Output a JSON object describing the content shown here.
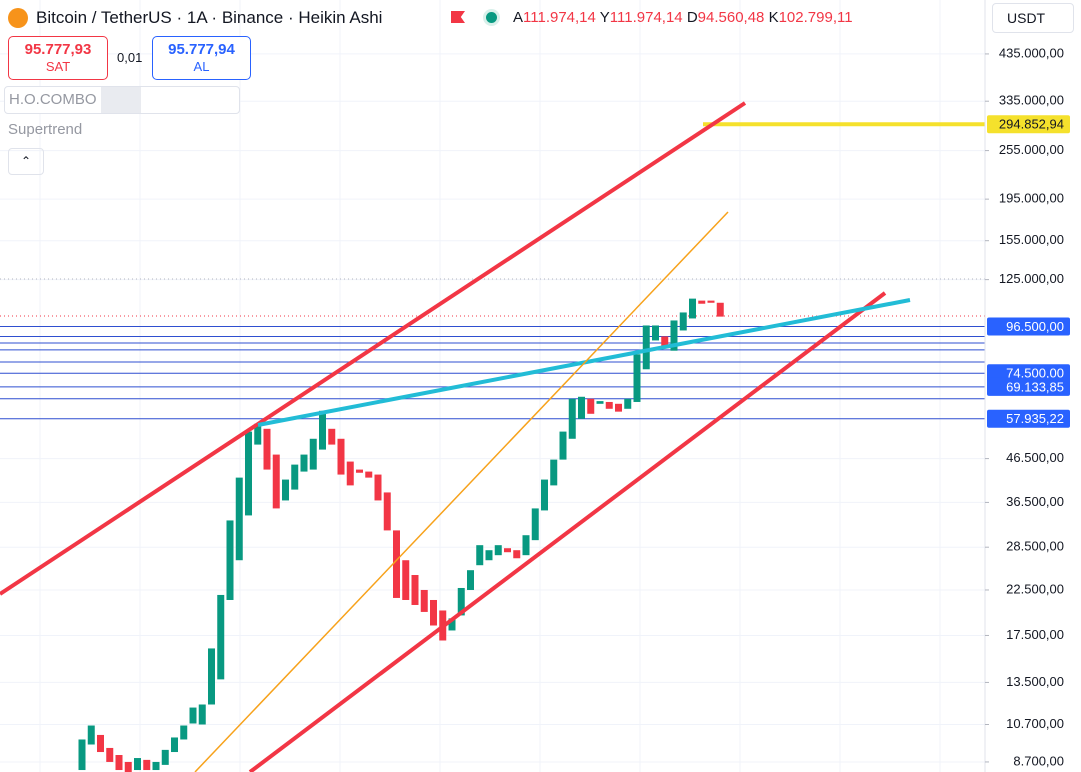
{
  "header": {
    "symbol": "Bitcoin / TetherUS · 1A · Binance · Heikin Ashi",
    "ohlc": [
      {
        "key": "A",
        "value": "111.974,14"
      },
      {
        "key": "Y",
        "value": "111.974,14"
      },
      {
        "key": "D",
        "value": "94.560,48"
      },
      {
        "key": "K",
        "value": "102.799,11"
      }
    ],
    "sell": {
      "price": "95.777,93",
      "label": "SAT"
    },
    "spread": "0,01",
    "buy": {
      "price": "95.777,94",
      "label": "AL"
    },
    "indicators": [
      "H.O.COMBO",
      "Supertrend"
    ],
    "currency": "USDT"
  },
  "chart_data": {
    "type": "candlestick",
    "log_scale": true,
    "grid": true,
    "up_color": "#089981",
    "down_color": "#f23645",
    "ylim": [
      8230,
      586000
    ],
    "yticks": [
      {
        "value": 435000,
        "label": "435.000,00"
      },
      {
        "value": 335000,
        "label": "335.000,00"
      },
      {
        "value": 255000,
        "label": "255.000,00"
      },
      {
        "value": 195000,
        "label": "195.000,00"
      },
      {
        "value": 155000,
        "label": "155.000,00"
      },
      {
        "value": 125000,
        "label": "125.000,00"
      },
      {
        "value": 46500,
        "label": "46.500,00"
      },
      {
        "value": 36500,
        "label": "36.500,00"
      },
      {
        "value": 28500,
        "label": "28.500,00"
      },
      {
        "value": 22500,
        "label": "22.500,00"
      },
      {
        "value": 17500,
        "label": "17.500,00"
      },
      {
        "value": 13500,
        "label": "13.500,00"
      },
      {
        "value": 10700,
        "label": "10.700,00"
      },
      {
        "value": 8700,
        "label": "8.700,00"
      }
    ],
    "open": [
      8320,
      9580,
      10100,
      9400,
      9040,
      8700,
      8320,
      8800,
      8320,
      8560,
      9190,
      9850,
      10760,
      10700,
      11950,
      13730,
      21290,
      26520,
      33970,
      50240,
      54820,
      47540,
      36900,
      39180,
      43280,
      43760,
      48870,
      54820,
      51880,
      45740,
      43760,
      43280,
      42570,
      38570,
      31270,
      26520,
      24440,
      22500,
      21290,
      20090,
      17990,
      19550,
      22500,
      25800,
      26520,
      27270,
      28340,
      28030,
      27270,
      29630,
      34920,
      40100,
      46240,
      51880,
      57940,
      64710,
      62940,
      63580,
      62940,
      61230,
      63580,
      76170,
      89320,
      91320,
      84400,
      94390,
      100860,
      111310,
      111310,
      110000
    ],
    "close": [
      9850,
      10640,
      9190,
      8700,
      8320,
      8230,
      8890,
      8320,
      8700,
      9300,
      9960,
      10640,
      11750,
      11950,
      16290,
      21890,
      33040,
      41860,
      53980,
      56360,
      43760,
      35310,
      41410,
      44980,
      47540,
      51880,
      60550,
      50240,
      42570,
      40100,
      43000,
      41860,
      36900,
      31270,
      21530,
      21290,
      20710,
      19930,
      18490,
      17020,
      19230,
      22750,
      25100,
      28820,
      28030,
      28820,
      27720,
      26810,
      30450,
      35310,
      41410,
      46240,
      53980,
      64710,
      65430,
      59560,
      63880,
      61230,
      60270,
      64710,
      82750,
      97030,
      97030,
      85460,
      99750,
      104260,
      112540,
      109410,
      110000,
      101890
    ],
    "levels": [
      {
        "value": 96500,
        "label": "96.500,00"
      },
      91320,
      88100,
      84800,
      79300,
      {
        "value": 74500,
        "label": "74.500,00"
      },
      {
        "value": 69133.85,
        "label": "69.133,85"
      },
      64700,
      {
        "value": 57935.22,
        "label": "57.935,22"
      }
    ],
    "level_color": "#2f4fd0",
    "highlight_level": {
      "value": 294852.94,
      "label": "294.852,94",
      "color": "#f5e12c"
    }
  }
}
